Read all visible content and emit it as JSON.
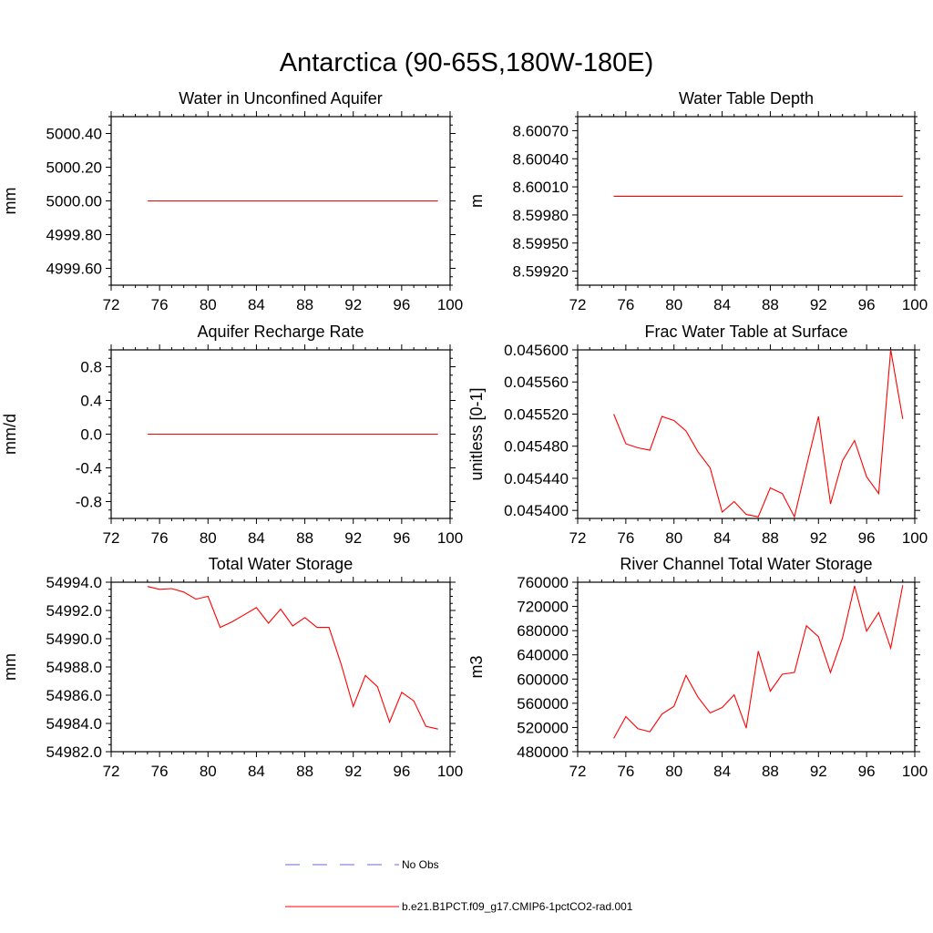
{
  "page_title": "Antarctica (90-65S,180W-180E)",
  "colors": {
    "series": "#ff0000",
    "obs": "#6a6ad8",
    "axis": "#000000"
  },
  "legend": {
    "obs_label": "No Obs",
    "run_label": "b.e21.B1PCT.f09_g17.CMIP6-1pctCO2-rad.001"
  },
  "chart_data": [
    {
      "type": "line",
      "title": "Water in Unconfined Aquifer",
      "ylabel": "mm",
      "xlim": [
        72,
        100
      ],
      "x_ticks": [
        72,
        76,
        80,
        84,
        88,
        92,
        96,
        100
      ],
      "x_tick_labels": [
        "72",
        "76",
        "80",
        "84",
        "88",
        "92",
        "96",
        "100"
      ],
      "ylim": [
        4999.5,
        5000.5
      ],
      "y_ticks": [
        4999.6,
        4999.8,
        5000.0,
        5000.2,
        5000.4
      ],
      "y_tick_labels": [
        "4999.60",
        "4999.80",
        "5000.00",
        "5000.20",
        "5000.40"
      ],
      "series": [
        {
          "x": [
            75,
            99
          ],
          "y": [
            5000.0,
            5000.0
          ]
        }
      ]
    },
    {
      "type": "line",
      "title": "Water Table Depth",
      "ylabel": "m",
      "xlim": [
        72,
        100
      ],
      "x_ticks": [
        72,
        76,
        80,
        84,
        88,
        92,
        96,
        100
      ],
      "x_tick_labels": [
        "72",
        "76",
        "80",
        "84",
        "88",
        "92",
        "96",
        "100"
      ],
      "ylim": [
        8.59905,
        8.60085
      ],
      "y_ticks": [
        8.5992,
        8.5995,
        8.5998,
        8.6001,
        8.6004,
        8.6007
      ],
      "y_tick_labels": [
        "8.59920",
        "8.59950",
        "8.59980",
        "8.60010",
        "8.60040",
        "8.60070"
      ],
      "series": [
        {
          "x": [
            75,
            99
          ],
          "y": [
            8.6,
            8.6
          ]
        }
      ]
    },
    {
      "type": "line",
      "title": "Aquifer Recharge Rate",
      "ylabel": "mm/d",
      "xlim": [
        72,
        100
      ],
      "x_ticks": [
        72,
        76,
        80,
        84,
        88,
        92,
        96,
        100
      ],
      "x_tick_labels": [
        "72",
        "76",
        "80",
        "84",
        "88",
        "92",
        "96",
        "100"
      ],
      "ylim": [
        -1.0,
        1.0
      ],
      "y_ticks": [
        -0.8,
        -0.4,
        0.0,
        0.4,
        0.8
      ],
      "y_tick_labels": [
        "-0.8",
        "-0.4",
        "0.0",
        "0.4",
        "0.8"
      ],
      "series": [
        {
          "x": [
            75,
            99
          ],
          "y": [
            0.0,
            0.0
          ]
        }
      ]
    },
    {
      "type": "line",
      "title": "Frac Water Table at Surface",
      "ylabel": "unitless [0-1]",
      "xlim": [
        72,
        100
      ],
      "x_ticks": [
        72,
        76,
        80,
        84,
        88,
        92,
        96,
        100
      ],
      "x_tick_labels": [
        "72",
        "76",
        "80",
        "84",
        "88",
        "92",
        "96",
        "100"
      ],
      "ylim": [
        0.04539,
        0.0456
      ],
      "y_ticks": [
        0.0454,
        0.04544,
        0.04548,
        0.04552,
        0.04556,
        0.0456
      ],
      "y_tick_labels": [
        "0.045400",
        "0.045440",
        "0.045480",
        "0.045520",
        "0.045560",
        "0.045600"
      ],
      "series": [
        {
          "x": [
            75,
            76,
            77,
            78,
            79,
            80,
            81,
            82,
            83,
            84,
            85,
            86,
            87,
            88,
            89,
            90,
            91,
            92,
            93,
            94,
            95,
            96,
            97,
            98,
            99
          ],
          "y": [
            0.04552,
            0.045483,
            0.045478,
            0.045475,
            0.045517,
            0.045512,
            0.045499,
            0.045473,
            0.045453,
            0.045398,
            0.045411,
            0.045395,
            0.045392,
            0.045428,
            0.045421,
            0.045392,
            0.045455,
            0.045517,
            0.045408,
            0.045462,
            0.045487,
            0.045442,
            0.045421,
            0.0456,
            0.045514
          ]
        }
      ]
    },
    {
      "type": "line",
      "title": "Total Water Storage",
      "ylabel": "mm",
      "xlim": [
        72,
        100
      ],
      "x_ticks": [
        72,
        76,
        80,
        84,
        88,
        92,
        96,
        100
      ],
      "x_tick_labels": [
        "72",
        "76",
        "80",
        "84",
        "88",
        "92",
        "96",
        "100"
      ],
      "ylim": [
        54982.0,
        54994.0
      ],
      "y_ticks": [
        54982.0,
        54984.0,
        54986.0,
        54988.0,
        54990.0,
        54992.0,
        54994.0
      ],
      "y_tick_labels": [
        "54982.0",
        "54984.0",
        "54986.0",
        "54988.0",
        "54990.0",
        "54992.0",
        "54994.0"
      ],
      "series": [
        {
          "x": [
            75,
            76,
            77,
            78,
            79,
            80,
            81,
            82,
            83,
            84,
            85,
            86,
            87,
            88,
            89,
            90,
            91,
            92,
            93,
            94,
            95,
            96,
            97,
            98,
            99
          ],
          "y": [
            54993.7,
            54993.5,
            54993.55,
            54993.3,
            54992.8,
            54993.0,
            54990.8,
            54991.2,
            54991.7,
            54992.2,
            54991.1,
            54992.1,
            54990.9,
            54991.5,
            54990.8,
            54990.8,
            54988.2,
            54985.2,
            54987.4,
            54986.6,
            54984.1,
            54986.2,
            54985.6,
            54983.8,
            54983.6
          ]
        }
      ]
    },
    {
      "type": "line",
      "title": "River Channel Total Water Storage",
      "ylabel": "m3",
      "xlim": [
        72,
        100
      ],
      "x_ticks": [
        72,
        76,
        80,
        84,
        88,
        92,
        96,
        100
      ],
      "x_tick_labels": [
        "72",
        "76",
        "80",
        "84",
        "88",
        "92",
        "96",
        "100"
      ],
      "ylim": [
        480000,
        760000
      ],
      "y_ticks": [
        480000,
        520000,
        560000,
        600000,
        640000,
        680000,
        720000,
        760000
      ],
      "y_tick_labels": [
        "480000",
        "520000",
        "560000",
        "600000",
        "640000",
        "680000",
        "720000",
        "760000"
      ],
      "series": [
        {
          "x": [
            75,
            76,
            77,
            78,
            79,
            80,
            81,
            82,
            83,
            84,
            85,
            86,
            87,
            88,
            89,
            90,
            91,
            92,
            93,
            94,
            95,
            96,
            97,
            98,
            99
          ],
          "y": [
            502000,
            538000,
            518000,
            513000,
            542000,
            555000,
            606000,
            570000,
            544000,
            553000,
            574000,
            519000,
            646000,
            580000,
            608000,
            611000,
            688000,
            670000,
            611000,
            668000,
            754000,
            679000,
            710000,
            651000,
            755000
          ]
        }
      ]
    }
  ]
}
